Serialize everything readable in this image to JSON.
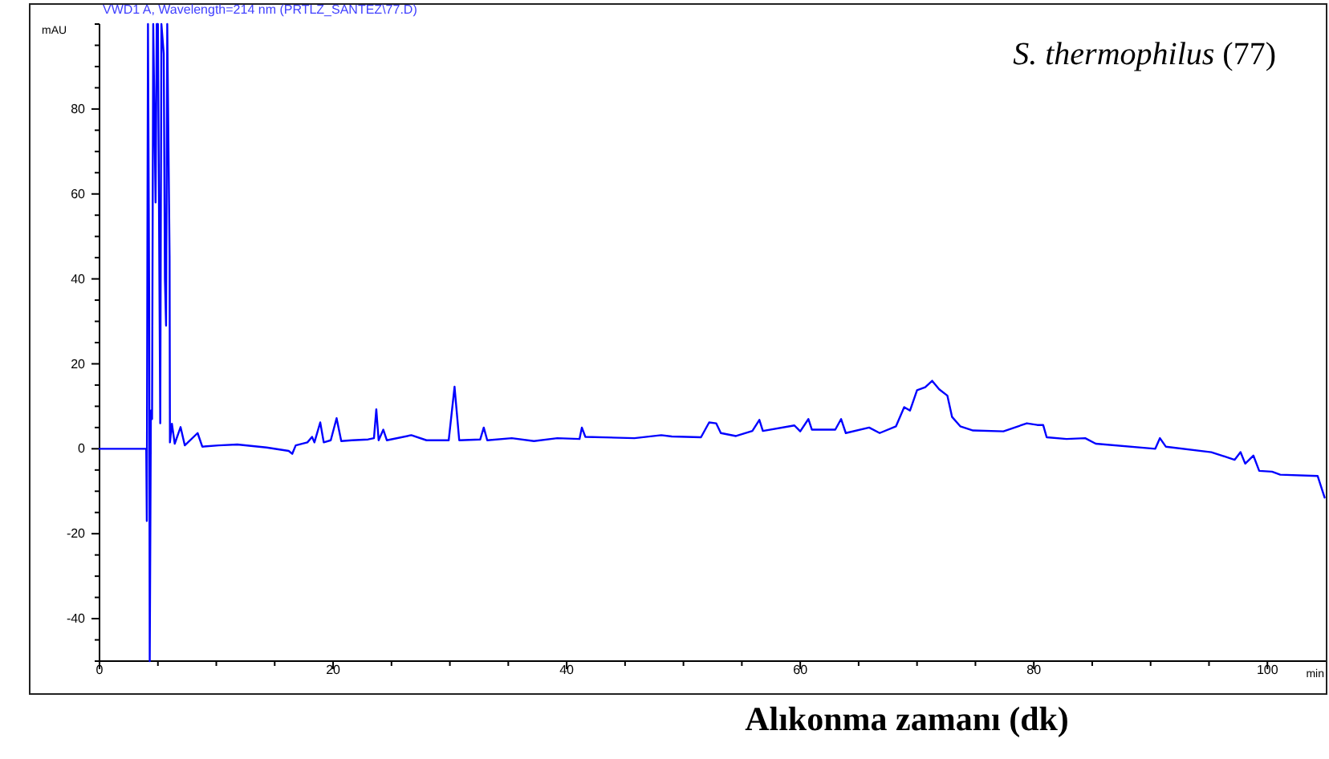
{
  "chart_data": {
    "type": "line",
    "title": "VWD1 A, Wavelength=214 nm (PRTLZ_SANTEZ\\77.D)",
    "xlabel": "Alıkonma zamanı (dk)",
    "ylabel": "mAU",
    "annotations": [
      "S. thermophilus (77)",
      "min"
    ],
    "xlim": [
      0,
      105
    ],
    "ylim": [
      -50,
      100
    ],
    "xticks": [
      0,
      {
        "value": 5,
        "label": null
      },
      {
        "value": 10,
        "label": null
      },
      {
        "value": 15,
        "label": null
      },
      20,
      {
        "value": 25,
        "label": null
      },
      {
        "value": 30,
        "label": null
      },
      {
        "value": 35,
        "label": null
      },
      40,
      {
        "value": 45,
        "label": null
      },
      {
        "value": 50,
        "label": null
      },
      {
        "value": 55,
        "label": null
      },
      60,
      {
        "value": 65,
        "label": null
      },
      {
        "value": 70,
        "label": null
      },
      {
        "value": 75,
        "label": null
      },
      80,
      {
        "value": 85,
        "label": null
      },
      {
        "value": 90,
        "label": null
      },
      {
        "value": 95,
        "label": null
      },
      100
    ],
    "yticks": [
      {
        "value": -50,
        "label": null
      },
      {
        "value": -45,
        "label": null
      },
      -40,
      {
        "value": -35,
        "label": null
      },
      {
        "value": -30,
        "label": null
      },
      {
        "value": -25,
        "label": null
      },
      -20,
      {
        "value": -15,
        "label": null
      },
      {
        "value": -10,
        "label": null
      },
      {
        "value": -5,
        "label": null
      },
      0,
      {
        "value": 5,
        "label": null
      },
      {
        "value": 10,
        "label": null
      },
      {
        "value": 15,
        "label": null
      },
      20,
      {
        "value": 25,
        "label": null
      },
      {
        "value": 30,
        "label": null
      },
      {
        "value": 35,
        "label": null
      },
      40,
      {
        "value": 45,
        "label": null
      },
      {
        "value": 50,
        "label": null
      },
      {
        "value": 55,
        "label": null
      },
      60,
      {
        "value": 65,
        "label": null
      },
      {
        "value": 70,
        "label": null
      },
      {
        "value": 75,
        "label": null
      },
      80,
      {
        "value": 85,
        "label": null
      },
      {
        "value": 90,
        "label": null
      },
      {
        "value": 95,
        "label": null
      },
      {
        "value": 100,
        "label": null
      }
    ],
    "grid": false,
    "marker": "none",
    "line_style": "solid",
    "series": [
      {
        "color": "#0000ff",
        "x": [
          0,
          4.0,
          4.05,
          4.1,
          4.15,
          4.25,
          4.3,
          4.4,
          4.5,
          4.6,
          4.8,
          4.9,
          5.0,
          5.2,
          5.3,
          5.5,
          5.6,
          5.7,
          5.8,
          6.0,
          6.03,
          6.2,
          6.44,
          6.94,
          7.3,
          8.4,
          8.8,
          10.2,
          11.8,
          14.3,
          16.2,
          16.5,
          16.8,
          17.8,
          18.2,
          18.4,
          18.9,
          19.2,
          19.8,
          20.3,
          20.7,
          21.6,
          23.0,
          23.5,
          23.7,
          23.9,
          24.3,
          24.6,
          26.7,
          28.0,
          29.9,
          30.4,
          30.8,
          32.6,
          32.9,
          33.2,
          35.3,
          37.2,
          39.2,
          41.1,
          41.3,
          41.6,
          45.8,
          48.1,
          49.0,
          51.5,
          52.2,
          52.8,
          53.2,
          54.5,
          55.9,
          56.5,
          56.8,
          59.5,
          60.0,
          60.7,
          61.0,
          63.0,
          63.5,
          63.9,
          65.9,
          66.8,
          68.2,
          68.9,
          69.4,
          70.0,
          70.7,
          71.3,
          71.9,
          72.6,
          73.0,
          73.7,
          74.8,
          77.4,
          79.4,
          80.3,
          80.8,
          81.1,
          82.8,
          84.4,
          85.3,
          90.4,
          90.8,
          91.3,
          95.2,
          97.2,
          97.7,
          98.1,
          98.8,
          99.3,
          100.4,
          101.1,
          104.3,
          104.9
        ],
        "values": [
          0,
          0,
          -17,
          48,
          100,
          36,
          -50,
          9,
          7,
          100,
          58,
          100,
          100,
          6,
          100,
          93,
          40,
          29,
          100,
          45,
          1.5,
          5.9,
          1.2,
          5.1,
          0.8,
          3.7,
          0.5,
          0.8,
          1,
          0.3,
          -0.5,
          -1.2,
          0.8,
          1.5,
          2.8,
          1.5,
          6.2,
          1.5,
          2,
          7.2,
          1.8,
          2,
          2.2,
          2.5,
          9.3,
          2,
          4.5,
          2,
          3.2,
          2,
          2,
          14.6,
          2,
          2.2,
          5,
          2,
          2.5,
          1.8,
          2.5,
          2.3,
          5,
          2.8,
          2.5,
          3.2,
          2.9,
          2.7,
          6.2,
          6,
          3.7,
          3,
          4.2,
          6.8,
          4.2,
          5.5,
          4.1,
          7,
          4.5,
          4.5,
          7,
          3.7,
          5,
          3.7,
          5.3,
          9.8,
          9,
          13.8,
          14.5,
          16,
          14,
          12.5,
          7.5,
          5.3,
          4.3,
          4.1,
          6,
          5.6,
          5.6,
          2.7,
          2.3,
          2.5,
          1.2,
          0,
          2.5,
          0.5,
          -0.8,
          -2.6,
          -0.8,
          -3.5,
          -1.6,
          -5.2,
          -5.4,
          -6.1,
          -6.4,
          -11.5
        ]
      }
    ]
  }
}
